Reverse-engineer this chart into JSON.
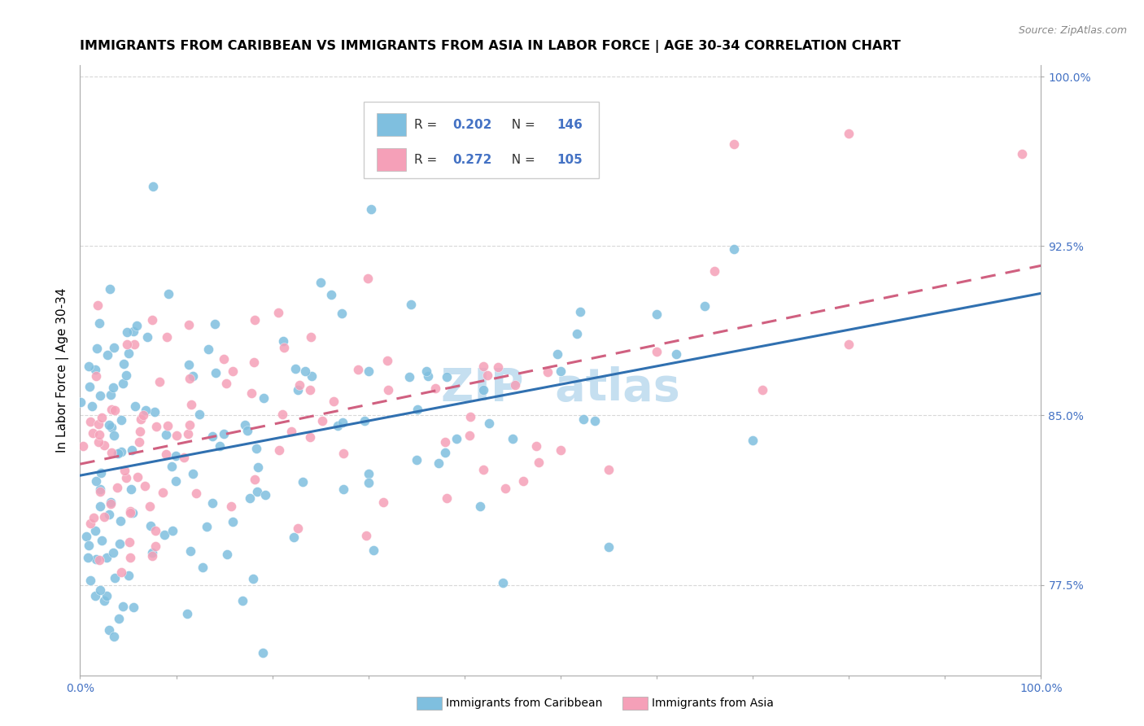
{
  "title": "IMMIGRANTS FROM CARIBBEAN VS IMMIGRANTS FROM ASIA IN LABOR FORCE | AGE 30-34 CORRELATION CHART",
  "source_text": "Source: ZipAtlas.com",
  "ylabel": "In Labor Force | Age 30-34",
  "xlim": [
    0,
    1.0
  ],
  "ylim": [
    0.735,
    1.005
  ],
  "yticks": [
    0.775,
    0.85,
    0.925,
    1.0
  ],
  "ytick_labels": [
    "77.5%",
    "85.0%",
    "92.5%",
    "100.0%"
  ],
  "legend_r1": "R = 0.202",
  "legend_n1": "N = 146",
  "legend_r2": "R = 0.272",
  "legend_n2": "N = 105",
  "caribbean_color": "#7fbfdf",
  "caribbean_line_color": "#3070b0",
  "asia_color": "#f5a0b8",
  "asia_line_color": "#d06080",
  "background_color": "#ffffff",
  "grid_color": "#d8d8d8",
  "axis_color": "#aaaaaa",
  "tick_color": "#4472c4",
  "title_fontsize": 11.5,
  "axis_label_fontsize": 11,
  "tick_fontsize": 10,
  "watermark_color": "#c5dff0"
}
